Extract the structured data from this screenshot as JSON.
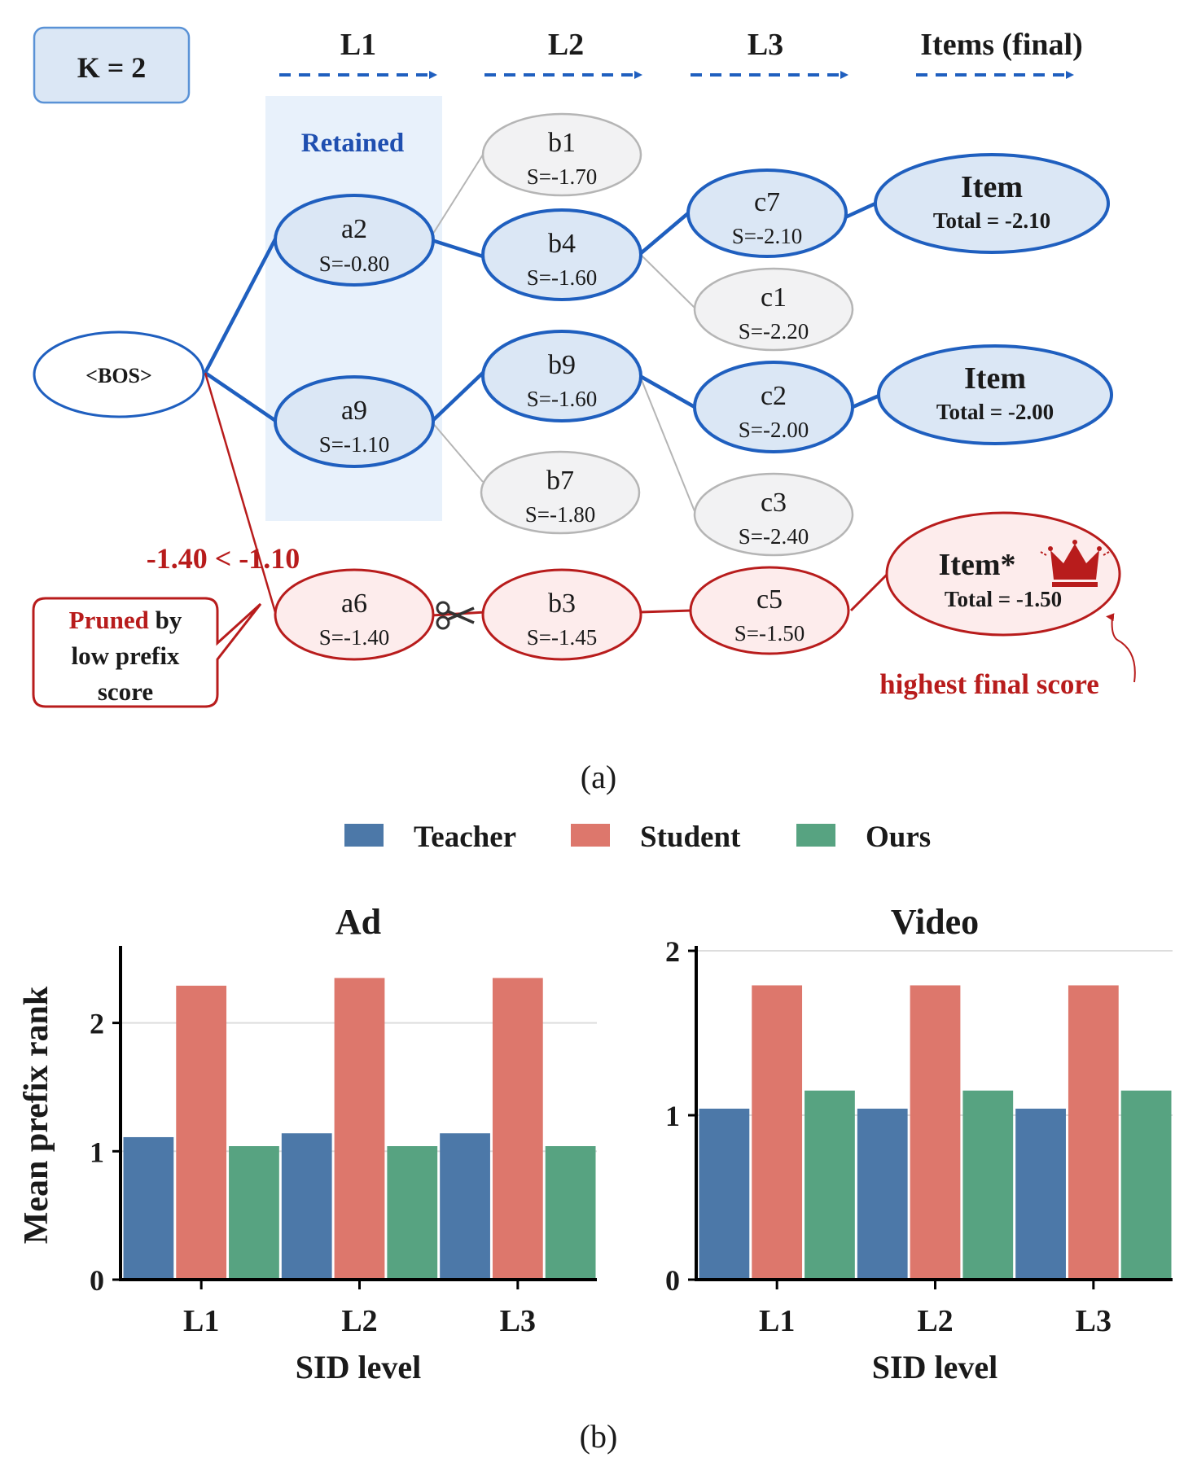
{
  "panel_a": {
    "caption": "(a)",
    "k_label": "K = 2",
    "levels": [
      "L1",
      "L2",
      "L3",
      "Items (final)"
    ],
    "retained_label": "Retained",
    "nodes": {
      "bos": {
        "name": "<BOS>"
      },
      "a2": {
        "name": "a2",
        "score": "S=-0.80"
      },
      "a9": {
        "name": "a9",
        "score": "S=-1.10"
      },
      "a6": {
        "name": "a6",
        "score": "S=-1.40"
      },
      "b1": {
        "name": "b1",
        "score": "S=-1.70"
      },
      "b4": {
        "name": "b4",
        "score": "S=-1.60"
      },
      "b9": {
        "name": "b9",
        "score": "S=-1.60"
      },
      "b7": {
        "name": "b7",
        "score": "S=-1.80"
      },
      "b3": {
        "name": "b3",
        "score": "S=-1.45"
      },
      "c7": {
        "name": "c7",
        "score": "S=-2.10"
      },
      "c1": {
        "name": "c1",
        "score": "S=-2.20"
      },
      "c2": {
        "name": "c2",
        "score": "S=-2.00"
      },
      "c3": {
        "name": "c3",
        "score": "S=-2.40"
      },
      "c5": {
        "name": "c5",
        "score": "S=-1.50"
      },
      "item1": {
        "name": "Item",
        "score": "Total = -2.10"
      },
      "item2": {
        "name": "Item",
        "score": "Total = -2.00"
      },
      "item3": {
        "name": "Item*",
        "score": "Total = -1.50"
      }
    },
    "comparison": "-1.40 < -1.10",
    "pruned_callout": {
      "line1_highlight": "Pruned",
      "line1_rest": " by",
      "line2": "low prefix",
      "line3": "score"
    },
    "highest_label": "highest final score",
    "colors": {
      "blue": "#1f5fbf",
      "red": "#b81c1c",
      "gray": "#b5b5b5",
      "blue_fill": "#dbe7f5",
      "red_fill": "#fdecec",
      "gray_fill": "#f2f2f3",
      "retained_band": "#e8f1fb"
    },
    "icons": [
      "crown-icon",
      "scissors-icon"
    ]
  },
  "panel_b": {
    "caption": "(b)",
    "legend": [
      "Teacher",
      "Student",
      "Ours"
    ],
    "colors": {
      "Teacher": "#4c78a8",
      "Student": "#dd776c",
      "Ours": "#57a381"
    }
  },
  "chart_data": [
    {
      "type": "bar",
      "title": "Ad",
      "xlabel": "SID level",
      "ylabel": "Mean prefix rank",
      "categories": [
        "L1",
        "L2",
        "L3"
      ],
      "series": [
        {
          "name": "Teacher",
          "values": [
            1.11,
            1.14,
            1.14
          ]
        },
        {
          "name": "Student",
          "values": [
            2.29,
            2.35,
            2.35
          ]
        },
        {
          "name": "Ours",
          "values": [
            1.04,
            1.04,
            1.04
          ]
        }
      ],
      "ylim": [
        0,
        2.6
      ],
      "yticks": [
        0,
        1,
        2
      ],
      "grid": true
    },
    {
      "type": "bar",
      "title": "Video",
      "xlabel": "SID level",
      "ylabel": "",
      "categories": [
        "L1",
        "L2",
        "L3"
      ],
      "series": [
        {
          "name": "Teacher",
          "values": [
            1.04,
            1.04,
            1.04
          ]
        },
        {
          "name": "Student",
          "values": [
            1.79,
            1.79,
            1.79
          ]
        },
        {
          "name": "Ours",
          "values": [
            1.15,
            1.15,
            1.15
          ]
        }
      ],
      "ylim": [
        0,
        2.03
      ],
      "yticks": [
        0,
        1,
        2
      ],
      "grid": true
    }
  ]
}
